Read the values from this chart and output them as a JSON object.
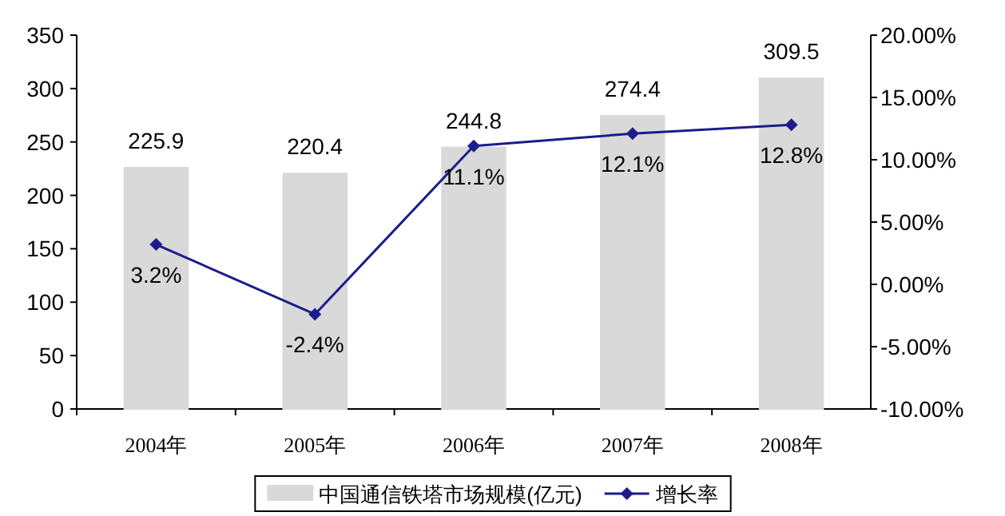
{
  "chart_data": {
    "type": "bar",
    "categories": [
      "2004年",
      "2005年",
      "2006年",
      "2007年",
      "2008年"
    ],
    "series": [
      {
        "name": "中国通信铁塔市场规模(亿元)",
        "color": "#d9d9d9",
        "values": [
          225.9,
          220.4,
          244.8,
          274.4,
          309.5
        ],
        "value_labels": [
          "225.9",
          "220.4",
          "244.8",
          "274.4",
          "309.5"
        ]
      },
      {
        "name": "增长率",
        "type": "line",
        "axis": "y2",
        "color": "#1c1c8c",
        "marker": "diamond",
        "values": [
          3.2,
          -2.4,
          11.1,
          12.1,
          12.8
        ],
        "value_labels": [
          "3.2%",
          "-2.4%",
          "11.1%",
          "12.1%",
          "12.8%"
        ]
      }
    ],
    "ylim": [
      0,
      350
    ],
    "yticks": [
      0,
      50,
      100,
      150,
      200,
      250,
      300,
      350
    ],
    "y2lim": [
      -10,
      20
    ],
    "y2ticks": [
      {
        "value": -10,
        "label": "-10.00%"
      },
      {
        "value": -5,
        "label": "-5.00%"
      },
      {
        "value": 0,
        "label": "0.00%"
      },
      {
        "value": 5,
        "label": "5.00%"
      },
      {
        "value": 10,
        "label": "10.00%"
      },
      {
        "value": 15,
        "label": "15.00%"
      },
      {
        "value": 20,
        "label": "20.00%"
      }
    ],
    "grid": false,
    "legend": "bottom"
  }
}
